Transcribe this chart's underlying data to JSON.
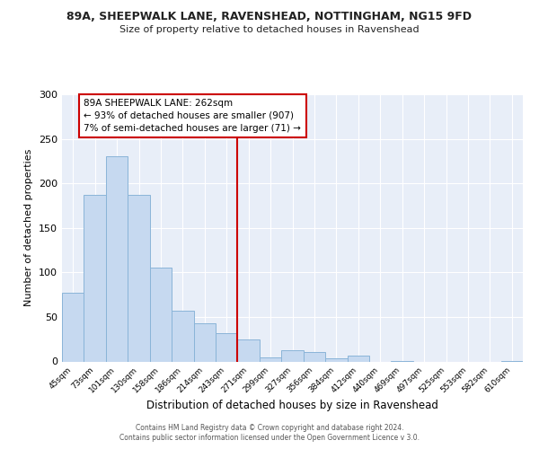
{
  "title_line1": "89A, SHEEPWALK LANE, RAVENSHEAD, NOTTINGHAM, NG15 9FD",
  "title_line2": "Size of property relative to detached houses in Ravenshead",
  "xlabel": "Distribution of detached houses by size in Ravenshead",
  "ylabel": "Number of detached properties",
  "bin_labels": [
    "45sqm",
    "73sqm",
    "101sqm",
    "130sqm",
    "158sqm",
    "186sqm",
    "214sqm",
    "243sqm",
    "271sqm",
    "299sqm",
    "327sqm",
    "356sqm",
    "384sqm",
    "412sqm",
    "440sqm",
    "469sqm",
    "497sqm",
    "525sqm",
    "553sqm",
    "582sqm",
    "610sqm"
  ],
  "bar_heights": [
    77,
    187,
    230,
    187,
    105,
    57,
    43,
    32,
    25,
    5,
    13,
    11,
    4,
    7,
    0,
    1,
    0,
    0,
    0,
    0,
    1
  ],
  "bar_color": "#c6d9f0",
  "bar_edge_color": "#8ab4d8",
  "vline_color": "#cc0000",
  "annotation_text": "89A SHEEPWALK LANE: 262sqm\n← 93% of detached houses are smaller (907)\n7% of semi-detached houses are larger (71) →",
  "annotation_box_edge": "#cc0000",
  "ylim": [
    0,
    300
  ],
  "yticks": [
    0,
    50,
    100,
    150,
    200,
    250,
    300
  ],
  "footer_text": "Contains HM Land Registry data © Crown copyright and database right 2024.\nContains public sector information licensed under the Open Government Licence v 3.0.",
  "plot_bg_color": "#e8eef8",
  "fig_bg_color": "#ffffff",
  "grid_color": "#ffffff"
}
